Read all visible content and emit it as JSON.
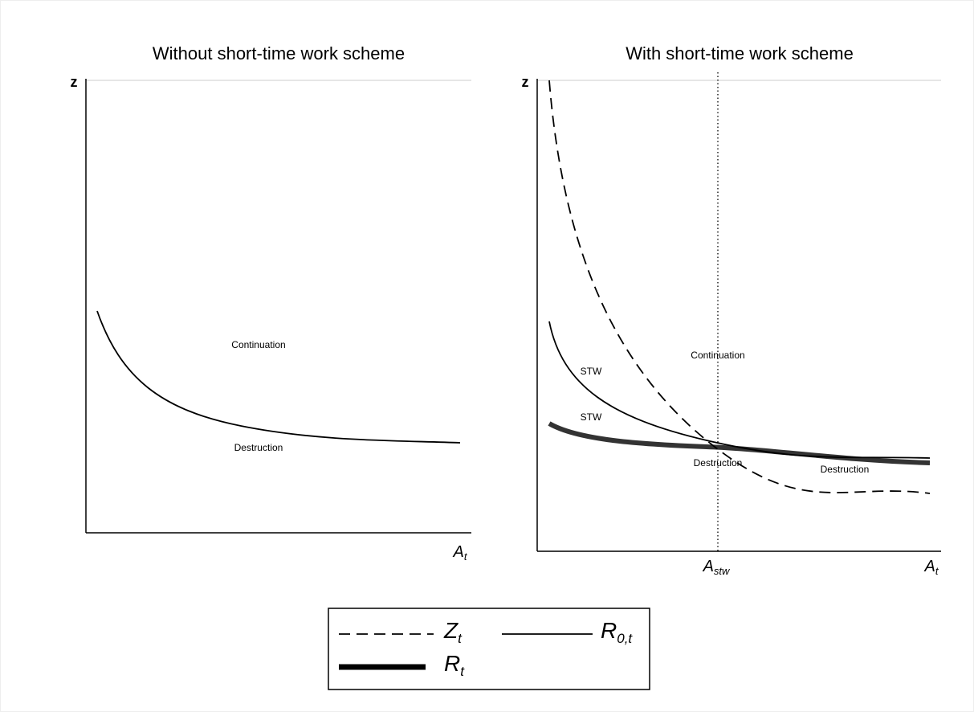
{
  "left_panel": {
    "title": "Without short-time work scheme",
    "y_axis_label": "z",
    "x_axis_label": {
      "main": "A",
      "sub": "t"
    },
    "region_labels": [
      "Continuation",
      "Destruction"
    ]
  },
  "right_panel": {
    "title": "With short-time work scheme",
    "y_axis_label": "z",
    "x_axis_label": {
      "main": "A",
      "sub": "t"
    },
    "threshold_label": {
      "main": "A",
      "sub": "stw"
    },
    "region_labels": [
      "Continuation",
      "STW",
      "STW",
      "Destruction",
      "Destruction"
    ]
  },
  "legend": [
    {
      "main": "Z",
      "sub": "t"
    },
    {
      "main": "R",
      "sub": "0,t"
    },
    {
      "main": "R",
      "sub": "t"
    }
  ]
}
